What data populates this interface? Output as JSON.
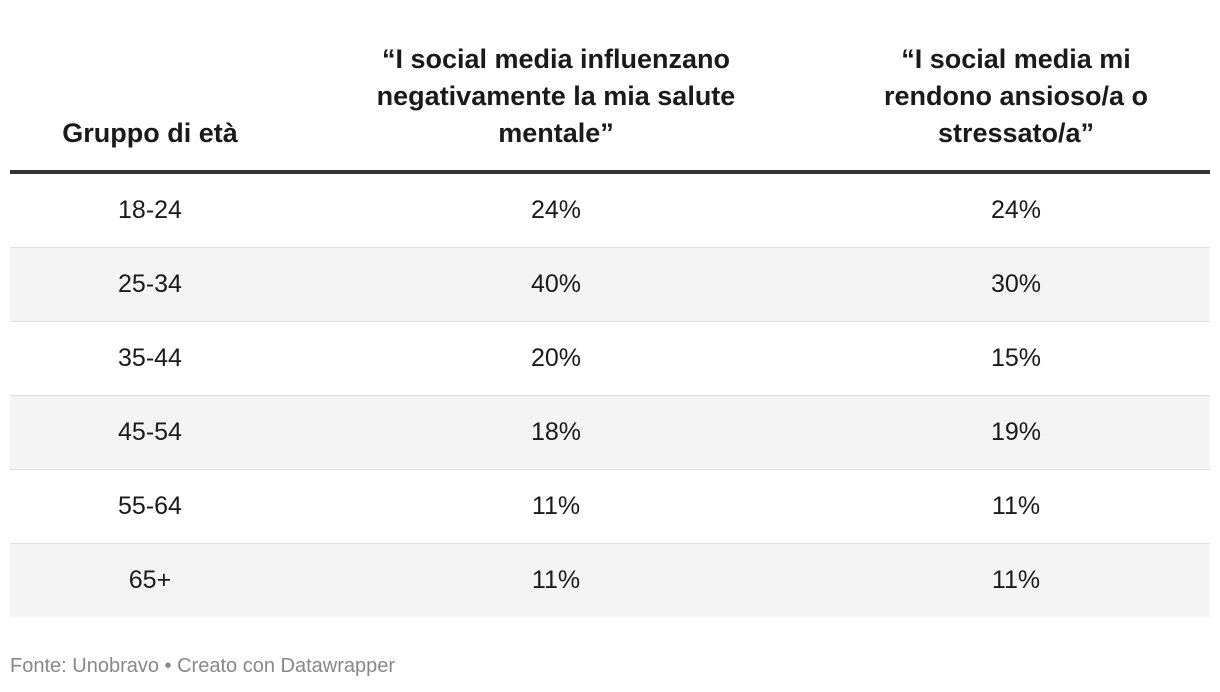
{
  "chart_data": {
    "type": "table",
    "columns": [
      "Gruppo di età",
      "“I social media influenzano negativamente la mia salute mentale”",
      "“I social media mi rendono ansioso/a o stressato/a”"
    ],
    "rows": [
      [
        "18-24",
        "24%",
        "24%"
      ],
      [
        "25-34",
        "40%",
        "30%"
      ],
      [
        "35-44",
        "20%",
        "15%"
      ],
      [
        "45-54",
        "18%",
        "19%"
      ],
      [
        "55-64",
        "11%",
        "11%"
      ],
      [
        "65+",
        "11%",
        "11%"
      ]
    ],
    "series": [
      {
        "name": "“I social media influenzano negativamente la mia salute mentale”",
        "values": [
          24,
          40,
          20,
          18,
          11,
          11
        ]
      },
      {
        "name": "“I social media mi rendono ansioso/a o stressato/a”",
        "values": [
          24,
          30,
          15,
          19,
          11,
          11
        ]
      }
    ],
    "categories": [
      "18-24",
      "25-34",
      "35-44",
      "45-54",
      "55-64",
      "65+"
    ]
  },
  "footer": {
    "source": "Fonte: Unobravo",
    "separator": " • ",
    "credit": "Creato con Datawrapper"
  },
  "colors": {
    "text": "#1a1a1a",
    "header_rule": "#333333",
    "row_shade": "#f4f4f4",
    "row_divider": "#e0e0e0",
    "footer_text": "#888888"
  }
}
